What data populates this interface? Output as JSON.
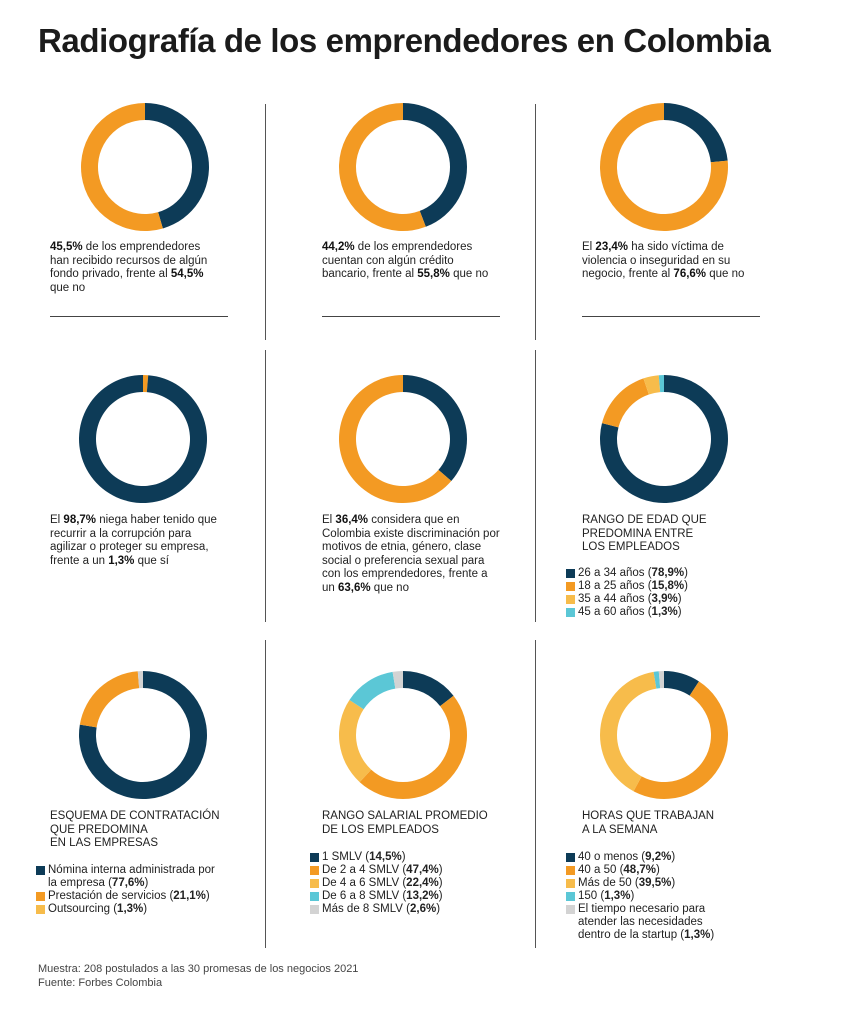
{
  "title": "Radiografía de los emprendedores en Colombia",
  "colors": {
    "navy": "#0d3b57",
    "orange": "#f39a23",
    "yellow": "#f7bc4b",
    "cyan": "#5bc7d6",
    "gray": "#d3d3d3"
  },
  "captions": {
    "c1": {
      "n1": "45,5%",
      "t1": " de los emprendedores han recibido recursos de algún fondo privado, frente al ",
      "n2": "54,5%",
      "t2": " que no"
    },
    "c2": {
      "n1": "44,2%",
      "t1": " de los emprendedores cuentan con algún crédito bancario, frente al ",
      "n2": "55,8%",
      "t2": " que no"
    },
    "c3": {
      "p0": "El ",
      "n1": "23,4%",
      "t1": " ha sido víctima de violencia o inseguridad en su negocio, frente al ",
      "n2": "76,6%",
      "t2": " que no"
    },
    "c4": {
      "p0": "El ",
      "n1": "98,7%",
      "t1": " niega haber tenido que recurrir a la corrupción para agilizar o proteger su empresa, frente a un ",
      "n2": "1,3%",
      "t2": " que sí"
    },
    "c5": {
      "p0": "El ",
      "n1": "36,4%",
      "t1": " considera que en Colombia existe discriminación por motivos de etnia, género, clase social o preferencia sexual para con los emprendedores, frente a un ",
      "n2": "63,6%",
      "t2": " que no"
    }
  },
  "panels": {
    "edad": {
      "title_lines": [
        "RANGO DE EDAD QUE",
        "PREDOMINA ENTRE",
        "LOS EMPLEADOS"
      ],
      "legend": [
        {
          "label": "26 a 34 años",
          "value": "78,9%"
        },
        {
          "label": "18 a 25 años",
          "value": "15,8%"
        },
        {
          "label": "35 a 44 años",
          "value": "3,9%"
        },
        {
          "label": "45 a 60 años",
          "value": "1,3%"
        }
      ]
    },
    "contratacion": {
      "title_lines": [
        "ESQUEMA DE CONTRATACIÓN",
        "QUE PREDOMINA",
        "EN LAS EMPRESAS"
      ],
      "legend": [
        {
          "label": "Nómina interna administrada por la empresa",
          "value": "77,6%"
        },
        {
          "label": "Prestación de servicios",
          "value": "21,1%"
        },
        {
          "label": "Outsourcing",
          "value": "1,3%"
        }
      ]
    },
    "salario": {
      "title_lines": [
        "RANGO SALARIAL PROMEDIO",
        "DE LOS EMPLEADOS"
      ],
      "legend": [
        {
          "label": "1 SMLV",
          "value": "14,5%"
        },
        {
          "label": "De 2 a 4 SMLV",
          "value": "47,4%"
        },
        {
          "label": "De 4 a 6 SMLV",
          "value": "22,4%"
        },
        {
          "label": "De 6 a 8 SMLV",
          "value": "13,2%"
        },
        {
          "label": "Más de 8 SMLV",
          "value": "2,6%"
        }
      ]
    },
    "horas": {
      "title_lines": [
        "HORAS QUE TRABAJAN",
        "A LA SEMANA"
      ],
      "legend": [
        {
          "label": "40 o menos",
          "value": "9,2%"
        },
        {
          "label": "40 a 50",
          "value": "48,7%"
        },
        {
          "label": "Más de 50",
          "value": "39,5%"
        },
        {
          "label": "150",
          "value": "1,3%"
        },
        {
          "label": "El tiempo necesario para atender las necesidades dentro de la startup",
          "value": "1,3%"
        }
      ]
    }
  },
  "chart_data": [
    {
      "type": "pie",
      "id": "fondo_privado",
      "slices": [
        {
          "value": 45.5,
          "color": "#0d3b57"
        },
        {
          "value": 54.5,
          "color": "#f39a23"
        }
      ]
    },
    {
      "type": "pie",
      "id": "credito_bancario",
      "slices": [
        {
          "value": 44.2,
          "color": "#0d3b57"
        },
        {
          "value": 55.8,
          "color": "#f39a23"
        }
      ]
    },
    {
      "type": "pie",
      "id": "violencia",
      "slices": [
        {
          "value": 23.4,
          "color": "#0d3b57"
        },
        {
          "value": 76.6,
          "color": "#f39a23"
        }
      ]
    },
    {
      "type": "pie",
      "id": "corrupcion",
      "slices": [
        {
          "value": 1.3,
          "color": "#f39a23"
        },
        {
          "value": 98.7,
          "color": "#0d3b57"
        }
      ]
    },
    {
      "type": "pie",
      "id": "discriminacion",
      "slices": [
        {
          "value": 36.4,
          "color": "#0d3b57"
        },
        {
          "value": 63.6,
          "color": "#f39a23"
        }
      ]
    },
    {
      "type": "pie",
      "id": "rango_edad",
      "slices": [
        {
          "name": "26 a 34 años",
          "value": 78.9,
          "color": "#0d3b57"
        },
        {
          "name": "18 a 25 años",
          "value": 15.8,
          "color": "#f39a23"
        },
        {
          "name": "35 a 44 años",
          "value": 3.9,
          "color": "#f7bc4b"
        },
        {
          "name": "45 a 60 años",
          "value": 1.3,
          "color": "#5bc7d6"
        }
      ]
    },
    {
      "type": "pie",
      "id": "contratacion",
      "slices": [
        {
          "name": "Nómina interna administrada por la empresa",
          "value": 77.6,
          "color": "#0d3b57"
        },
        {
          "name": "Prestación de servicios",
          "value": 21.1,
          "color": "#f39a23"
        },
        {
          "name": "Outsourcing",
          "value": 1.3,
          "color": "#d3d3d3"
        }
      ]
    },
    {
      "type": "pie",
      "id": "rango_salarial",
      "slices": [
        {
          "name": "1 SMLV",
          "value": 14.5,
          "color": "#0d3b57"
        },
        {
          "name": "De 2 a 4 SMLV",
          "value": 47.4,
          "color": "#f39a23"
        },
        {
          "name": "De 4 a 6 SMLV",
          "value": 22.4,
          "color": "#f7bc4b"
        },
        {
          "name": "De 6 a 8 SMLV",
          "value": 13.2,
          "color": "#5bc7d6"
        },
        {
          "name": "Más de 8 SMLV",
          "value": 2.6,
          "color": "#d3d3d3"
        }
      ]
    },
    {
      "type": "pie",
      "id": "horas_semana",
      "slices": [
        {
          "name": "40 o menos",
          "value": 9.2,
          "color": "#0d3b57"
        },
        {
          "name": "40 a 50",
          "value": 48.7,
          "color": "#f39a23"
        },
        {
          "name": "Más de 50",
          "value": 39.5,
          "color": "#f7bc4b"
        },
        {
          "name": "150",
          "value": 1.3,
          "color": "#5bc7d6"
        },
        {
          "name": "El tiempo necesario para atender las necesidades dentro de la startup",
          "value": 1.3,
          "color": "#d3d3d3"
        }
      ]
    }
  ],
  "footer": {
    "line1": "Muestra: 208 postulados a las 30 promesas de los negocios 2021",
    "line2": "Fuente: Forbes Colombia"
  }
}
